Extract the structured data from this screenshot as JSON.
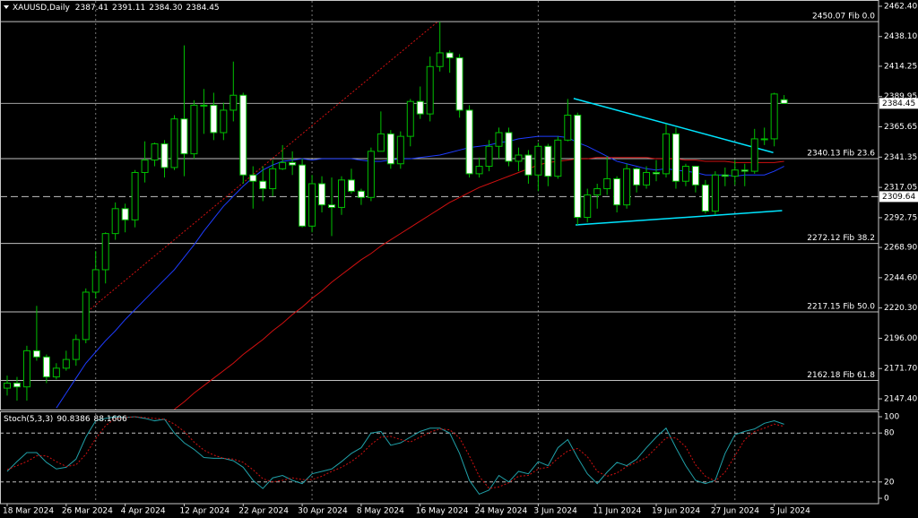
{
  "chart_data": [
    {
      "type": "candlestick",
      "title": "XAUUSD,Daily",
      "header_values": [
        "2387.41",
        "2391.11",
        "2384.30",
        "2384.45"
      ],
      "categories": [
        "18 Mar 2024",
        null,
        null,
        null,
        null,
        null,
        "26 Mar 2024",
        null,
        null,
        null,
        null,
        null,
        "4 Apr 2024",
        null,
        null,
        null,
        null,
        null,
        "12 Apr 2024",
        null,
        null,
        null,
        null,
        null,
        "22 Apr 2024",
        null,
        null,
        null,
        null,
        null,
        "30 Apr 2024",
        null,
        null,
        null,
        null,
        null,
        "8 May 2024",
        null,
        null,
        null,
        null,
        null,
        "16 May 2024",
        null,
        null,
        null,
        null,
        null,
        "24 May 2024",
        null,
        null,
        null,
        null,
        null,
        "3 Jun 2024",
        null,
        null,
        null,
        null,
        null,
        "11 Jun 2024",
        null,
        null,
        null,
        null,
        null,
        "19 Jun 2024",
        null,
        null,
        null,
        null,
        null,
        "27 Jun 2024",
        null,
        null,
        null,
        null,
        null,
        "5 Jul 2024",
        null
      ],
      "open": [
        2156,
        2160,
        2157,
        2186,
        2181,
        2165,
        2172,
        2179,
        2195,
        2233,
        2251,
        2280,
        2300,
        2291,
        2329,
        2339,
        2352,
        2333,
        2372,
        2344,
        2383,
        2383,
        2361,
        2379,
        2391,
        2327,
        2322,
        2316,
        2332,
        2337,
        2335,
        2286,
        2320,
        2303,
        2301,
        2323,
        2314,
        2309,
        2346,
        2360,
        2336,
        2358,
        2386,
        2376,
        2414,
        2425,
        2421,
        2379,
        2328,
        2334,
        2350,
        2361,
        2338,
        2343,
        2327,
        2350,
        2326,
        2355,
        2375,
        2293,
        2311,
        2316,
        2324,
        2303,
        2332,
        2319,
        2329,
        2328,
        2360,
        2322,
        2334,
        2319,
        2298,
        2327,
        2326,
        2331,
        2330,
        2356,
        2356,
        2387.41
      ],
      "high": [
        2166,
        2165,
        2190,
        2222,
        2183,
        2176,
        2186,
        2199,
        2236,
        2266,
        2281,
        2305,
        2304,
        2331,
        2354,
        2353,
        2355,
        2375,
        2431,
        2387,
        2396,
        2393,
        2385,
        2418,
        2393,
        2334,
        2334,
        2339,
        2351,
        2346,
        2340,
        2327,
        2326,
        2325,
        2326,
        2332,
        2316,
        2349,
        2378,
        2363,
        2362,
        2388,
        2398,
        2422,
        2450,
        2427,
        2424,
        2383,
        2341,
        2355,
        2365,
        2365,
        2349,
        2347,
        2353,
        2352,
        2358,
        2388,
        2377,
        2316,
        2320,
        2342,
        2326,
        2336,
        2333,
        2334,
        2339,
        2368,
        2365,
        2336,
        2334,
        2323,
        2330,
        2333,
        2339,
        2336,
        2364,
        2365,
        2393,
        2391.11
      ],
      "low": [
        2150,
        2146,
        2146,
        2178,
        2160,
        2163,
        2170,
        2174,
        2192,
        2228,
        2240,
        2275,
        2281,
        2285,
        2321,
        2334,
        2325,
        2331,
        2326,
        2340,
        2360,
        2355,
        2355,
        2370,
        2320,
        2300,
        2306,
        2310,
        2331,
        2327,
        2285,
        2281,
        2297,
        2278,
        2295,
        2312,
        2303,
        2306,
        2346,
        2332,
        2332,
        2350,
        2372,
        2370,
        2410,
        2409,
        2373,
        2325,
        2325,
        2330,
        2340,
        2334,
        2330,
        2320,
        2314,
        2318,
        2324,
        2354,
        2287,
        2289,
        2300,
        2311,
        2297,
        2300,
        2313,
        2316,
        2322,
        2325,
        2316,
        2318,
        2313,
        2296,
        2295,
        2318,
        2319,
        2318,
        2328,
        2351,
        2350,
        2384.3
      ],
      "close": [
        2160,
        2157,
        2186,
        2181,
        2165,
        2172,
        2179,
        2195,
        2233,
        2251,
        2280,
        2300,
        2291,
        2329,
        2339,
        2352,
        2333,
        2372,
        2344,
        2383,
        2383,
        2361,
        2379,
        2391,
        2327,
        2322,
        2316,
        2332,
        2337,
        2335,
        2286,
        2320,
        2303,
        2301,
        2323,
        2314,
        2309,
        2346,
        2360,
        2336,
        2358,
        2386,
        2376,
        2414,
        2425,
        2421,
        2379,
        2328,
        2334,
        2350,
        2361,
        2338,
        2343,
        2327,
        2350,
        2326,
        2355,
        2375,
        2293,
        2311,
        2316,
        2324,
        2303,
        2332,
        2319,
        2329,
        2328,
        2360,
        2322,
        2334,
        2319,
        2298,
        2327,
        2326,
        2331,
        2330,
        2356,
        2356,
        2392,
        2384.45
      ],
      "up_color": "#00c000",
      "down_fill": "#ffffff",
      "moving_averages": [
        {
          "color": "#1e3cff",
          "values": [
            null,
            null,
            null,
            null,
            null,
            2140,
            2152,
            2164,
            2176,
            2185,
            2194,
            2202,
            2211,
            2219,
            2227,
            2235,
            2243,
            2251,
            2261,
            2271,
            2282,
            2292,
            2302,
            2310,
            2318,
            2325,
            2331,
            2335,
            2338,
            2339,
            2340,
            2339,
            2340,
            2340,
            2340,
            2340,
            2339,
            2338,
            2338,
            2339,
            2340,
            2340,
            2341,
            2342,
            2343,
            2345,
            2347,
            2349,
            2350,
            2351,
            2353,
            2354,
            2356,
            2357,
            2358,
            2358,
            2358,
            2357,
            2353,
            2350,
            2346,
            2342,
            2338,
            2336,
            2334,
            2332,
            2331,
            2332,
            2331,
            2330,
            2329,
            2327,
            2327,
            2327,
            2326,
            2327,
            2327,
            2327,
            2330,
            2334
          ]
        },
        {
          "color": "#d01010",
          "values": [
            null,
            null,
            null,
            null,
            null,
            null,
            null,
            null,
            null,
            null,
            null,
            null,
            null,
            null,
            null,
            null,
            null,
            2139,
            2145,
            2152,
            2158,
            2164,
            2170,
            2176,
            2183,
            2189,
            2195,
            2202,
            2208,
            2215,
            2221,
            2228,
            2234,
            2241,
            2247,
            2253,
            2259,
            2264,
            2270,
            2275,
            2280,
            2285,
            2290,
            2295,
            2300,
            2305,
            2309,
            2313,
            2317,
            2320,
            2323,
            2326,
            2329,
            2332,
            2335,
            2337,
            2338,
            2339,
            2340,
            2340,
            2341,
            2341,
            2341,
            2341,
            2341,
            2341,
            2340,
            2340,
            2340,
            2339,
            2339,
            2338,
            2338,
            2338,
            2337,
            2337,
            2337,
            2337,
            2337,
            2338
          ]
        }
      ],
      "trendlines": [
        {
          "color": "#00e5ff",
          "points": [
            [
              57.6,
              2388.4
            ],
            [
              77.9,
              2345.0
            ]
          ]
        },
        {
          "color": "#00e5ff",
          "points": [
            [
              57.8,
              2286.9
            ],
            [
              78.8,
              2298.4
            ]
          ]
        },
        {
          "color": "#d01010",
          "style": "dotted",
          "points": [
            [
              7.9,
              2215.7
            ],
            [
              43.7,
              2449.5
            ]
          ]
        }
      ],
      "fib_levels": [
        {
          "value": 2450.07,
          "label": "2450.07 Fib 0.0"
        },
        {
          "value": 2340.13,
          "label": "2340.13 Fib 23.6"
        },
        {
          "value": 2272.12,
          "label": "2272.12 Fib 38.2"
        },
        {
          "value": 2217.15,
          "label": "2217.15 Fib 50.0"
        },
        {
          "value": 2162.18,
          "label": "2162.18 Fib 61.8"
        }
      ],
      "hlines": [
        {
          "value": 2309.64,
          "style": "dashed"
        }
      ],
      "ylim": [
        2138.8,
        2467.4
      ],
      "yticks": [
        {
          "value": 2462.4,
          "label": "2462.40"
        },
        {
          "value": 2438.1,
          "label": "2438.10"
        },
        2414.25,
        2389.95,
        2365.65,
        2341.35,
        2317.05,
        2292.75,
        {
          "value": 2268.9,
          "label": "2268.90"
        },
        {
          "value": 2244.6,
          "label": "2244.60"
        },
        {
          "value": 2220.3,
          "label": "2220.30"
        },
        {
          "value": 2196,
          "label": "2196.00"
        },
        {
          "value": 2171.7,
          "label": "2171.70"
        },
        {
          "value": 2147.4,
          "label": "2147.40"
        }
      ]
    },
    {
      "type": "line",
      "title": "Stoch(5,3,3)",
      "series": [
        {
          "color": "#20a0a8",
          "style": "solid",
          "values": [
            33,
            45,
            56,
            56,
            44,
            36,
            38,
            48,
            75,
            95,
            98,
            100,
            99,
            100,
            98,
            95,
            97,
            80,
            68,
            60,
            50,
            49,
            49,
            46,
            38,
            22,
            12,
            25,
            28,
            22,
            18,
            30,
            33,
            36,
            45,
            55,
            62,
            80,
            82,
            65,
            68,
            75,
            82,
            86,
            86,
            80,
            55,
            22,
            5,
            10,
            28,
            20,
            33,
            30,
            45,
            40,
            62,
            72,
            50,
            30,
            18,
            32,
            44,
            40,
            48,
            62,
            75,
            86,
            62,
            40,
            22,
            18,
            22,
            55,
            78,
            82,
            85,
            92,
            95,
            90.8386
          ]
        },
        {
          "color": "#d01010",
          "style": "dotted",
          "values": [
            35,
            40,
            45,
            52,
            52,
            45,
            39,
            41,
            54,
            73,
            89,
            98,
            99,
            100,
            99,
            98,
            97,
            91,
            82,
            69,
            59,
            53,
            49,
            48,
            44,
            35,
            24,
            20,
            22,
            25,
            23,
            23,
            27,
            33,
            38,
            45,
            54,
            66,
            75,
            76,
            72,
            69,
            75,
            81,
            85,
            84,
            74,
            52,
            27,
            12,
            14,
            19,
            27,
            28,
            36,
            38,
            49,
            58,
            61,
            51,
            33,
            27,
            31,
            39,
            44,
            50,
            62,
            74,
            74,
            63,
            41,
            27,
            21,
            32,
            52,
            72,
            82,
            86,
            91,
            88.1606
          ]
        }
      ],
      "levels": [
        80,
        20
      ],
      "ylim": [
        -6.6,
        105.5
      ],
      "yticks": [
        100,
        80,
        20,
        0
      ]
    }
  ]
}
